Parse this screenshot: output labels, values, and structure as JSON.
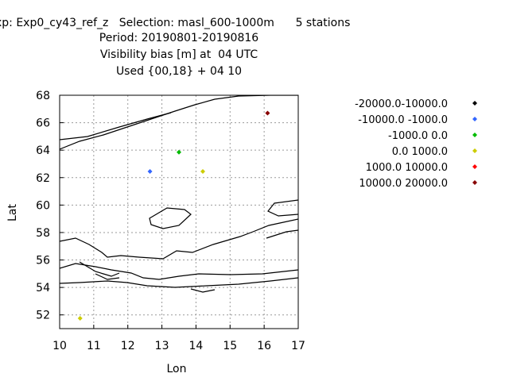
{
  "header": {
    "line1": "xp: Exp0_cy43_ref_z   Selection: masl_600-1000m      5 stations",
    "line2": "Period: 20190801-20190816",
    "line3": "Visibility bias [m] at  04 UTC",
    "line4": "Used {00,18} + 04 10"
  },
  "chart_data": {
    "type": "scatter",
    "title": "Visibility bias [m] at  04 UTC",
    "xlabel": "Lon",
    "ylabel": "Lat",
    "xlim": [
      10,
      17
    ],
    "ylim": [
      51,
      68
    ],
    "xticks": [
      "10",
      "11",
      "12",
      "13",
      "14",
      "15",
      "16",
      "17"
    ],
    "yticks": [
      "52",
      "54",
      "56",
      "58",
      "60",
      "62",
      "64",
      "66",
      "68"
    ],
    "grid": true,
    "legend_position": "right",
    "classes": [
      {
        "name": "-20000.0-10000.0",
        "color": "#000000"
      },
      {
        "name": "-10000.0 -1000.0",
        "color": "#3366ff"
      },
      {
        "name": "-1000.0 0.0",
        "color": "#00bb00"
      },
      {
        "name": "0.0 1000.0",
        "color": "#cccc00"
      },
      {
        "name": "1000.0 10000.0",
        "color": "#ff0000"
      },
      {
        "name": "10000.0 20000.0",
        "color": "#880000"
      }
    ],
    "points": [
      {
        "x": 12.65,
        "y": 62.45,
        "class": 1
      },
      {
        "x": 13.5,
        "y": 63.85,
        "class": 2
      },
      {
        "x": 14.2,
        "y": 62.45,
        "class": 3
      },
      {
        "x": 16.1,
        "y": 66.7,
        "class": 5
      },
      {
        "x": 10.6,
        "y": 51.75,
        "class": 3
      }
    ]
  }
}
